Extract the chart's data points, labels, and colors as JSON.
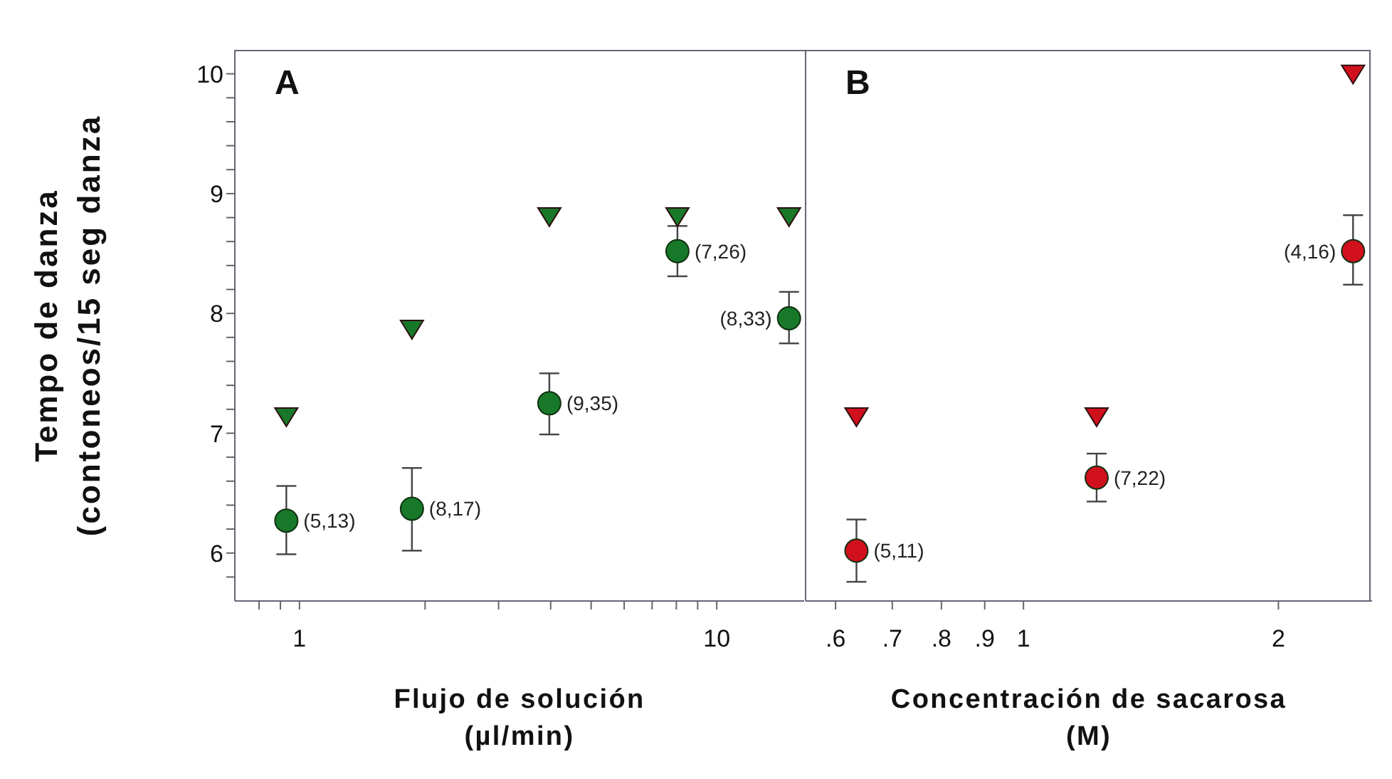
{
  "chart_data": [
    {
      "type": "scatter",
      "xlabel": "Flujo de solución\n(µl/min)",
      "ylabel": "Tempo de danza\n(contoneos/15 seg danza",
      "log": "x",
      "grid": false,
      "legend": false,
      "xlim": [
        0.7,
        16.2
      ],
      "xticks": [
        {
          "value": 0.8,
          "label": null
        },
        {
          "value": 0.9,
          "label": null
        },
        1,
        {
          "value": 2,
          "label": null
        },
        {
          "value": 3,
          "label": null
        },
        {
          "value": 4,
          "label": null
        },
        {
          "value": 5,
          "label": null
        },
        {
          "value": 6,
          "label": null
        },
        {
          "value": 7,
          "label": null
        },
        {
          "value": 8,
          "label": null
        },
        {
          "value": 9,
          "label": null
        },
        10
      ],
      "ylim": [
        5.6,
        10.2
      ],
      "yticks": [
        {
          "value": 5.8,
          "label": null
        },
        6,
        {
          "value": 6.2,
          "label": null
        },
        {
          "value": 6.4,
          "label": null
        },
        {
          "value": 6.6,
          "label": null
        },
        {
          "value": 6.8,
          "label": null
        },
        7,
        {
          "value": 7.2,
          "label": null
        },
        {
          "value": 7.4,
          "label": null
        },
        {
          "value": 7.6,
          "label": null
        },
        {
          "value": 7.8,
          "label": null
        },
        8,
        {
          "value": 8.2,
          "label": null
        },
        {
          "value": 8.4,
          "label": null
        },
        {
          "value": 8.6,
          "label": null
        },
        {
          "value": 8.8,
          "label": null
        },
        9,
        {
          "value": 9.2,
          "label": null
        },
        {
          "value": 9.4,
          "label": null
        },
        {
          "value": 9.6,
          "label": null
        },
        {
          "value": 9.8,
          "label": null
        },
        10
      ],
      "series": [
        {
          "color": "#17782a",
          "marker": "circle",
          "x": [
            0.93,
            1.86,
            3.97,
            8.05,
            14.9
          ],
          "values": [
            6.27,
            6.37,
            7.25,
            8.52,
            7.96
          ],
          "errors": [
            [
              5.99,
              6.56
            ],
            [
              6.02,
              6.71
            ],
            [
              6.99,
              7.5
            ],
            [
              8.31,
              8.73
            ],
            [
              7.75,
              8.18
            ]
          ]
        },
        {
          "color": "#17782a",
          "marker": "triangle",
          "x": [
            0.93,
            1.86,
            3.97,
            8.05,
            14.9
          ],
          "values": [
            7.14,
            7.87,
            8.81,
            8.81,
            8.81
          ]
        }
      ],
      "annotations": [
        "A",
        {
          "text": "(5,13)",
          "x": 0.93,
          "y": 6.27
        },
        {
          "text": "(8,17)",
          "x": 1.86,
          "y": 6.37
        },
        {
          "text": "(9,35)",
          "x": 3.97,
          "y": 7.25
        },
        {
          "text": "(7,26)",
          "x": 8.05,
          "y": 8.52
        },
        {
          "text": "(8,33)",
          "x": 14.9,
          "y": 7.96
        }
      ]
    },
    {
      "type": "scatter",
      "xlabel": "Concentración de sacarosa\n(M)",
      "log": "x",
      "grid": false,
      "legend": false,
      "tick_labels": "x",
      "xlim": [
        0.553,
        2.58
      ],
      "xticks": [
        {
          "value": 0.6,
          "label": ".6"
        },
        {
          "value": 0.7,
          "label": ".7"
        },
        {
          "value": 0.8,
          "label": ".8"
        },
        {
          "value": 0.9,
          "label": ".9"
        },
        1,
        2
      ],
      "ylim": [
        5.6,
        10.2
      ],
      "series": [
        {
          "color": "#d0101c",
          "marker": "circle",
          "x": [
            0.635,
            1.22,
            2.45
          ],
          "values": [
            6.02,
            6.63,
            8.52
          ],
          "errors": [
            [
              5.76,
              6.28
            ],
            [
              6.43,
              6.83
            ],
            [
              8.24,
              8.82
            ]
          ]
        },
        {
          "color": "#d0101c",
          "marker": "triangle",
          "x": [
            0.635,
            1.22,
            2.45
          ],
          "values": [
            7.14,
            7.14,
            10
          ]
        }
      ],
      "annotations": [
        "B",
        {
          "text": "(5,11)",
          "x": 0.635,
          "y": 6.02
        },
        {
          "text": "(7,22)",
          "x": 1.22,
          "y": 6.63
        },
        {
          "text": "(4,16)",
          "x": 2.45,
          "y": 8.52
        }
      ]
    }
  ]
}
